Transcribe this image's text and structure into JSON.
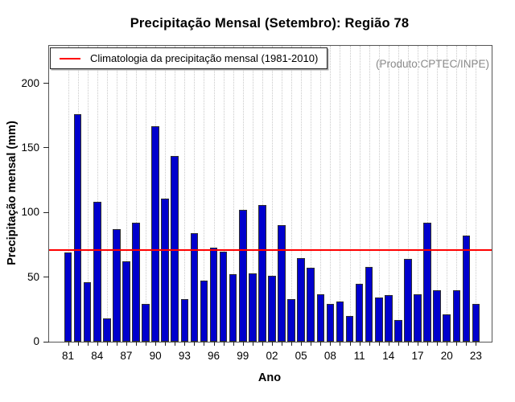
{
  "header": {
    "title": "Precipitação Mensal (Setembro): Região 78",
    "watermark": "(Produto:CPTEC/INPE)"
  },
  "legend": {
    "label": "Climatologia da precipitação mensal (1981-2010)"
  },
  "chart_data": {
    "type": "bar",
    "title": "Precipitação Mensal (Setembro): Região 78",
    "xlabel": "Ano",
    "ylabel": "Precipitação mensal (mm)",
    "ylim": [
      0,
      229
    ],
    "yticks": [
      0,
      50,
      100,
      150,
      200
    ],
    "x_tick_label_every": 3,
    "x_tick_labels": [
      "81",
      "84",
      "87",
      "90",
      "93",
      "96",
      "99",
      "02",
      "05",
      "08",
      "11",
      "14",
      "17",
      "20",
      "23"
    ],
    "years": [
      1981,
      1982,
      1983,
      1984,
      1985,
      1986,
      1987,
      1988,
      1989,
      1990,
      1991,
      1992,
      1993,
      1994,
      1995,
      1996,
      1997,
      1998,
      1999,
      2000,
      2001,
      2002,
      2003,
      2004,
      2005,
      2006,
      2007,
      2008,
      2009,
      2010,
      2011,
      2012,
      2013,
      2014,
      2015,
      2016,
      2017,
      2018,
      2019,
      2020,
      2021,
      2022,
      2023
    ],
    "values": [
      69,
      176,
      46,
      108,
      18,
      87,
      62,
      92,
      29,
      167,
      111,
      144,
      33,
      84,
      47,
      73,
      70,
      52,
      102,
      53,
      106,
      51,
      90,
      33,
      65,
      57,
      37,
      29,
      31,
      20,
      45,
      58,
      34,
      36,
      17,
      64,
      37,
      92,
      40,
      21,
      40,
      82,
      29
    ],
    "climatology_line": 71,
    "bar_color": "#0000CD",
    "line_color": "#FF0000",
    "grid": "vertical-dotted",
    "legend_position": "top-left",
    "series_name": "Precipitação mensal (mm)"
  }
}
